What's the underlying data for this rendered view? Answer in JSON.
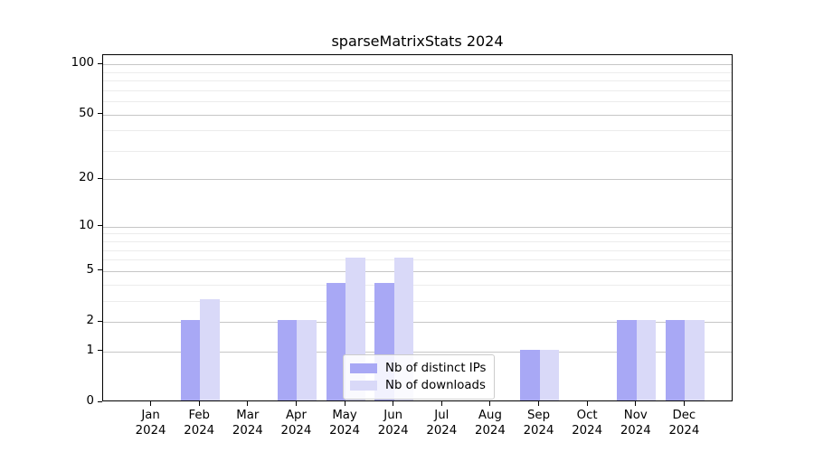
{
  "title": "sparseMatrixStats 2024",
  "chart_data": {
    "type": "bar",
    "scale": "log1p",
    "title": "sparseMatrixStats 2024",
    "xlabel": "",
    "ylabel": "",
    "year": "2024",
    "categories": [
      "Jan",
      "Feb",
      "Mar",
      "Apr",
      "May",
      "Jun",
      "Jul",
      "Aug",
      "Sep",
      "Oct",
      "Nov",
      "Dec"
    ],
    "series": [
      {
        "name": "Nb of distinct IPs",
        "color": "#a8a8f5",
        "values": [
          0,
          2,
          0,
          2,
          4,
          4,
          0,
          0,
          1,
          0,
          2,
          2
        ]
      },
      {
        "name": "Nb of downloads",
        "color": "#d9d9f8",
        "values": [
          0,
          3,
          0,
          2,
          6,
          6,
          0,
          0,
          1,
          0,
          2,
          2
        ]
      }
    ],
    "yticks": [
      0,
      1,
      2,
      5,
      10,
      20,
      50,
      100
    ],
    "minor_yticks": [
      3,
      4,
      6,
      7,
      8,
      9,
      30,
      40,
      60,
      70,
      80,
      90
    ],
    "ylim": [
      0,
      110
    ],
    "grid": "horizontal",
    "legend_position": "lower center"
  },
  "colors": {
    "major_grid": "#c6c6c6",
    "minor_grid": "#ececec",
    "axis": "#000000",
    "background": "#ffffff"
  }
}
